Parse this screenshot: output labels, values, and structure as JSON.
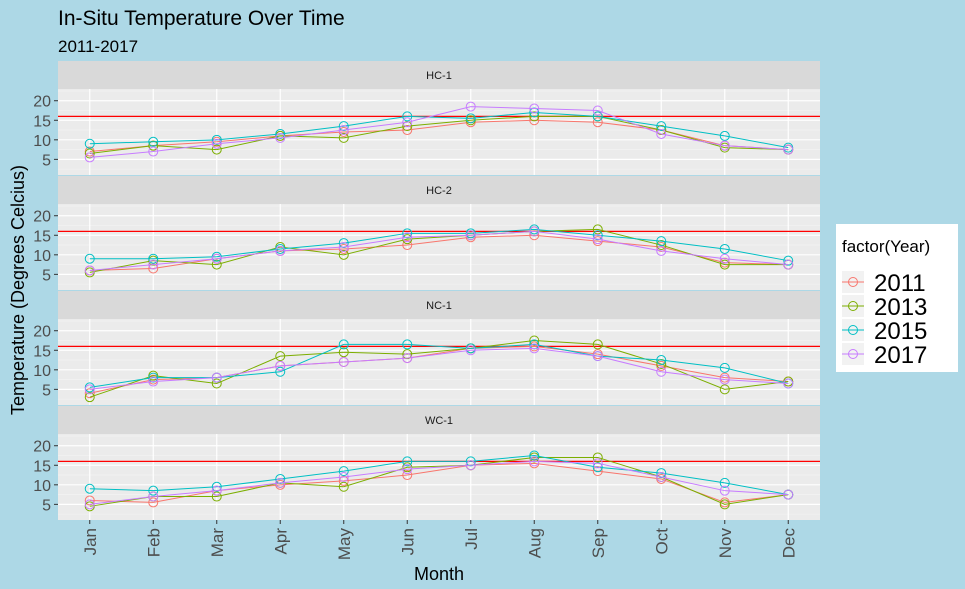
{
  "chart_data": {
    "type": "line",
    "title": "In-Situ Temperature Over Time",
    "subtitle": "2011-2017",
    "xlabel": "Month",
    "ylabel": "Temperature (Degrees Celcius)",
    "categories": [
      "Jan",
      "Feb",
      "Mar",
      "Apr",
      "May",
      "Jun",
      "Jul",
      "Aug",
      "Sep",
      "Oct",
      "Nov",
      "Dec"
    ],
    "y_ticks": [
      5,
      10,
      15,
      20
    ],
    "ylim": [
      1,
      23
    ],
    "reference_line": {
      "y": 16,
      "color": "#ff0000"
    },
    "legend": {
      "title": "factor(Year)",
      "position": "right"
    },
    "series_colors": {
      "2011": "#f8766d",
      "2013": "#7cae00",
      "2015": "#00bfc4",
      "2017": "#c77cff"
    },
    "panels": [
      {
        "name": "HC-1",
        "series": [
          {
            "name": "2011",
            "values": [
              7.0,
              8.5,
              9.5,
              11.0,
              12.0,
              12.5,
              14.5,
              15.0,
              14.5,
              12.5,
              8.5,
              7.5
            ]
          },
          {
            "name": "2013",
            "values": [
              6.5,
              8.5,
              7.5,
              11.0,
              10.5,
              13.5,
              15.0,
              16.0,
              16.0,
              12.5,
              8.0,
              7.5
            ]
          },
          {
            "name": "2015",
            "values": [
              9.0,
              9.5,
              10.0,
              11.5,
              13.5,
              16.0,
              15.5,
              17.0,
              16.0,
              13.5,
              11.0,
              8.0
            ]
          },
          {
            "name": "2017",
            "values": [
              5.5,
              7.0,
              9.0,
              10.5,
              12.5,
              14.5,
              18.5,
              18.0,
              17.5,
              11.5,
              8.5,
              7.5
            ]
          }
        ]
      },
      {
        "name": "HC-2",
        "series": [
          {
            "name": "2011",
            "values": [
              6.0,
              6.5,
              9.0,
              11.0,
              11.5,
              12.5,
              14.5,
              15.0,
              13.5,
              12.0,
              8.0,
              7.5
            ]
          },
          {
            "name": "2013",
            "values": [
              5.5,
              8.5,
              7.5,
              12.0,
              10.0,
              14.0,
              15.0,
              16.0,
              16.5,
              12.5,
              7.5,
              7.5
            ]
          },
          {
            "name": "2015",
            "values": [
              9.0,
              9.0,
              9.5,
              11.5,
              13.0,
              15.5,
              15.5,
              16.5,
              15.0,
              13.5,
              11.5,
              8.5
            ]
          },
          {
            "name": "2017",
            "values": [
              6.0,
              7.5,
              9.0,
              11.0,
              12.0,
              14.5,
              15.0,
              16.0,
              14.0,
              11.0,
              9.0,
              7.5
            ]
          }
        ]
      },
      {
        "name": "NC-1",
        "series": [
          {
            "name": "2011",
            "values": [
              4.0,
              7.5,
              8.0,
              11.0,
              12.0,
              13.0,
              15.5,
              16.0,
              14.0,
              11.0,
              8.0,
              7.0
            ]
          },
          {
            "name": "2013",
            "values": [
              3.0,
              8.5,
              6.5,
              13.5,
              14.5,
              14.0,
              15.5,
              17.5,
              16.5,
              11.5,
              5.0,
              7.0
            ]
          },
          {
            "name": "2015",
            "values": [
              5.5,
              8.0,
              8.0,
              9.5,
              16.5,
              16.5,
              15.5,
              16.5,
              13.5,
              12.5,
              10.5,
              6.5
            ]
          },
          {
            "name": "2017",
            "values": [
              5.0,
              7.0,
              8.0,
              11.0,
              12.0,
              13.0,
              15.0,
              15.5,
              13.5,
              9.5,
              7.5,
              6.5
            ]
          }
        ]
      },
      {
        "name": "WC-1",
        "series": [
          {
            "name": "2011",
            "values": [
              6.0,
              5.5,
              8.5,
              10.0,
              11.0,
              12.5,
              15.0,
              15.5,
              13.5,
              11.5,
              5.5,
              7.5
            ]
          },
          {
            "name": "2013",
            "values": [
              4.5,
              7.0,
              7.0,
              10.5,
              9.5,
              14.5,
              15.0,
              17.0,
              17.0,
              12.0,
              5.0,
              7.5
            ]
          },
          {
            "name": "2015",
            "values": [
              9.0,
              8.5,
              9.5,
              11.5,
              13.5,
              16.0,
              16.0,
              17.5,
              14.5,
              13.0,
              10.5,
              7.5
            ]
          },
          {
            "name": "2017",
            "values": [
              5.0,
              7.0,
              8.5,
              10.5,
              12.0,
              14.0,
              15.0,
              16.0,
              15.5,
              12.0,
              8.5,
              7.5
            ]
          }
        ]
      }
    ]
  }
}
